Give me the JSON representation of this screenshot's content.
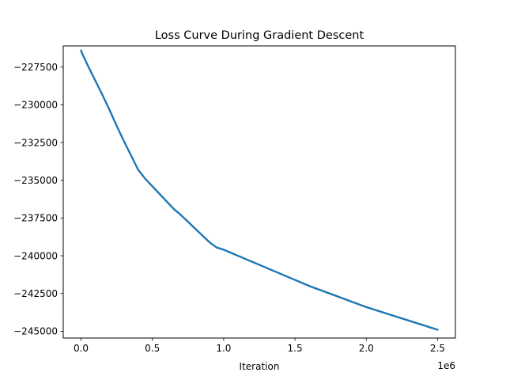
{
  "chart_data": {
    "type": "line",
    "title": "Loss Curve During Gradient Descent",
    "xlabel": "Iteration",
    "ylabel": "",
    "x_offset_text": "1e6",
    "xlim": [
      -0.125,
      2.625
    ],
    "ylim": [
      -245450,
      -226100
    ],
    "x_ticks": [
      0.0,
      0.5,
      1.0,
      1.5,
      2.0,
      2.5
    ],
    "x_tick_labels": [
      "0.0",
      "0.5",
      "1.0",
      "1.5",
      "2.0",
      "2.5"
    ],
    "y_ticks": [
      -227500,
      -230000,
      -232500,
      -235000,
      -237500,
      -240000,
      -242500,
      -245000
    ],
    "y_tick_labels": [
      "−227500",
      "−230000",
      "−232500",
      "−235000",
      "−237500",
      "−240000",
      "−242500",
      "−245000"
    ],
    "grid": false,
    "legend": "none",
    "line_color": "#1f77b4",
    "series": [
      {
        "x": [
          0.0,
          0.005,
          0.02,
          0.05,
          0.1,
          0.15,
          0.2,
          0.25,
          0.3,
          0.35,
          0.4,
          0.45,
          0.5,
          0.55,
          0.6,
          0.65,
          0.7,
          0.75,
          0.8,
          0.85,
          0.9,
          0.95,
          1.0,
          1.05,
          1.1,
          1.2,
          1.3,
          1.4,
          1.5,
          1.6,
          1.7,
          1.8,
          1.9,
          2.0,
          2.1,
          2.2,
          2.3,
          2.4,
          2.5
        ],
        "y": [
          -226400,
          -226550,
          -226850,
          -227450,
          -228400,
          -229350,
          -230350,
          -231400,
          -232400,
          -233350,
          -234300,
          -234900,
          -235400,
          -235900,
          -236400,
          -236900,
          -237300,
          -237750,
          -238200,
          -238650,
          -239100,
          -239450,
          -239600,
          -239800,
          -240000,
          -240400,
          -240800,
          -241200,
          -241600,
          -242000,
          -242350,
          -242700,
          -243050,
          -243400,
          -243700,
          -244000,
          -244300,
          -244600,
          -244900
        ]
      }
    ]
  }
}
